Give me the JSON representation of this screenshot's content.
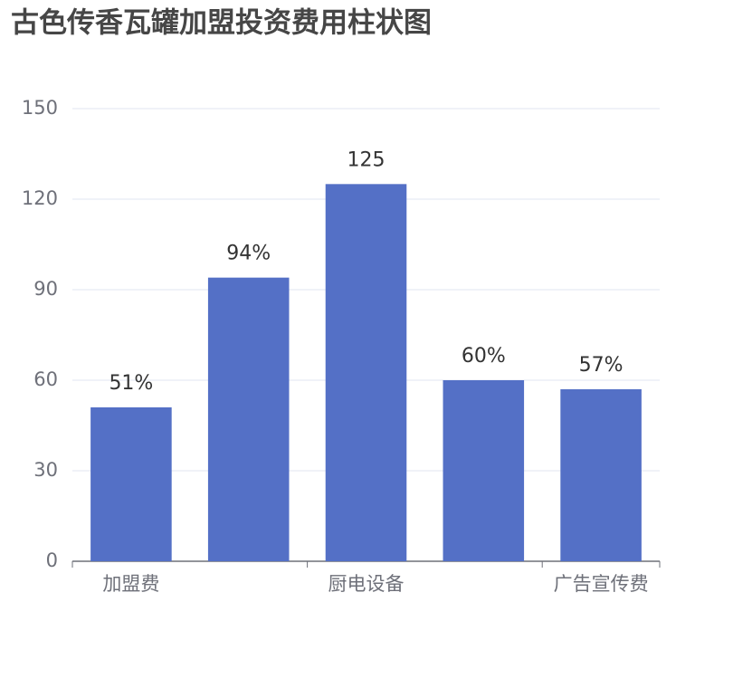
{
  "chart_data": {
    "type": "bar",
    "title": "古色传香瓦罐加盟投资费用柱状图",
    "categories": [
      "加盟费",
      null,
      "厨电设备",
      null,
      "广告宣传费"
    ],
    "values": [
      51,
      94,
      125,
      60,
      57
    ],
    "value_labels": [
      "51%",
      "94%",
      "125",
      "60%",
      "57%"
    ],
    "color": "#5470c6",
    "ylim": [
      0,
      150
    ],
    "yticks": [
      0,
      30,
      60,
      90,
      120,
      150
    ],
    "grid": true
  }
}
